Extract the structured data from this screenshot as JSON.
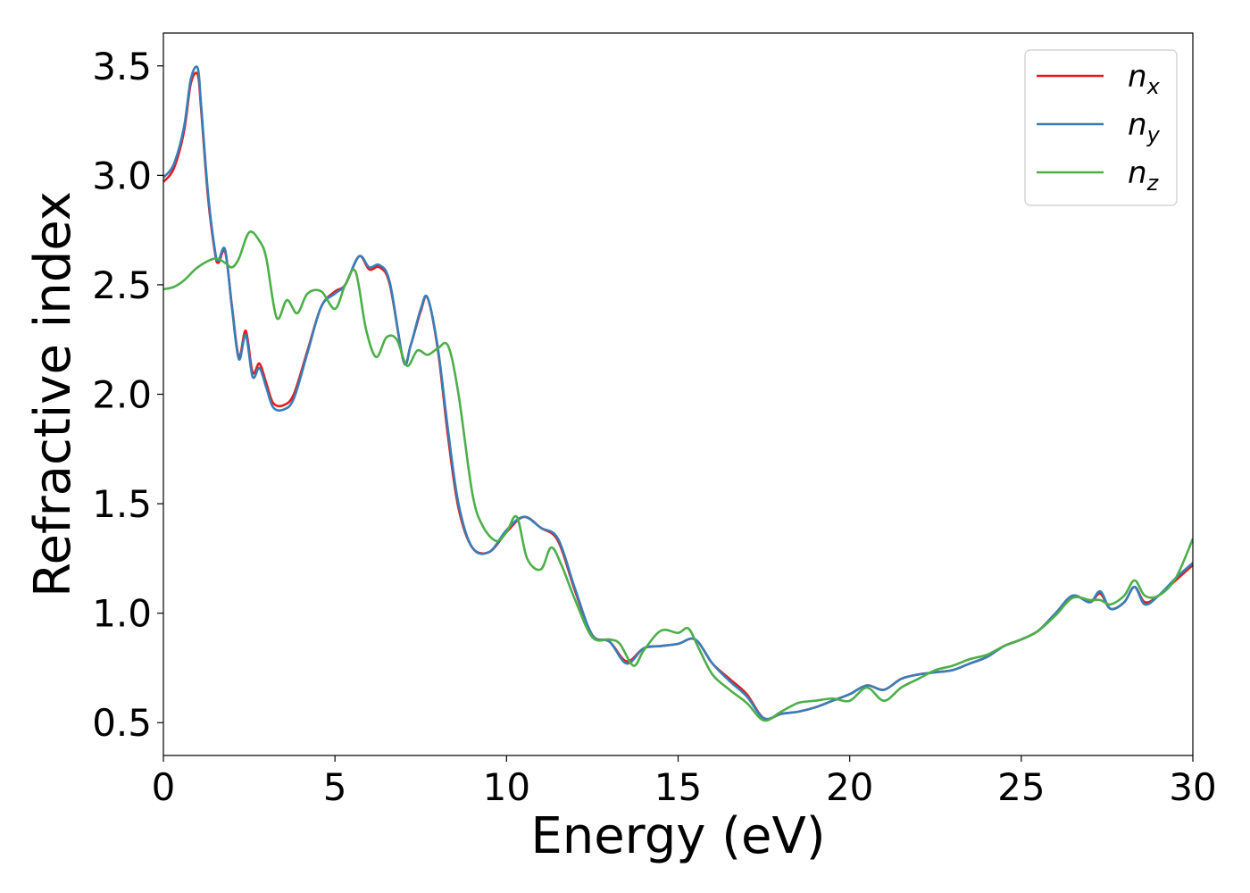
{
  "chart_data": {
    "type": "line",
    "title": "",
    "xlabel": "Energy (eV)",
    "ylabel": "Refractive index",
    "xlim": [
      0,
      30
    ],
    "ylim": [
      0.35,
      3.65
    ],
    "xticks": [
      0,
      5,
      10,
      15,
      20,
      25,
      30
    ],
    "yticks": [
      0.5,
      1.0,
      1.5,
      2.0,
      2.5,
      3.0,
      3.5
    ],
    "xtick_labels": [
      "0",
      "5",
      "10",
      "15",
      "20",
      "25",
      "30"
    ],
    "ytick_labels": [
      "0.5",
      "1.0",
      "1.5",
      "2.0",
      "2.5",
      "3.0",
      "3.5"
    ],
    "grid": false,
    "legend_position": "top-right",
    "series": [
      {
        "name": "n_x",
        "label_base": "n",
        "label_sub": "x",
        "color": "#e41a1c",
        "x": [
          0,
          0.3,
          0.6,
          0.8,
          1.0,
          1.1,
          1.3,
          1.5,
          1.6,
          1.8,
          2.0,
          2.2,
          2.4,
          2.6,
          2.8,
          3.0,
          3.2,
          3.5,
          3.8,
          4.2,
          4.6,
          5.0,
          5.3,
          5.7,
          6.0,
          6.3,
          6.6,
          7.0,
          7.2,
          7.5,
          7.7,
          8.0,
          8.3,
          8.6,
          9.0,
          9.5,
          10.0,
          10.5,
          11.0,
          11.5,
          12.0,
          12.5,
          13.0,
          13.5,
          14.0,
          14.5,
          15.0,
          15.5,
          16.0,
          16.5,
          17.0,
          17.5,
          18.0,
          18.5,
          19.0,
          19.5,
          20.0,
          20.5,
          21.0,
          21.5,
          22.0,
          22.5,
          23.0,
          23.5,
          24.0,
          24.5,
          25.0,
          25.5,
          26.0,
          26.5,
          27.0,
          27.3,
          27.6,
          28.0,
          28.3,
          28.6,
          29.0,
          29.5,
          30.0
        ],
        "y": [
          2.97,
          3.03,
          3.2,
          3.42,
          3.46,
          3.3,
          2.9,
          2.65,
          2.6,
          2.65,
          2.4,
          2.17,
          2.29,
          2.1,
          2.14,
          2.05,
          1.96,
          1.95,
          2.0,
          2.2,
          2.4,
          2.47,
          2.5,
          2.63,
          2.57,
          2.58,
          2.5,
          2.15,
          2.22,
          2.38,
          2.44,
          2.2,
          1.8,
          1.48,
          1.3,
          1.28,
          1.37,
          1.44,
          1.39,
          1.33,
          1.1,
          0.9,
          0.87,
          0.78,
          0.84,
          0.85,
          0.86,
          0.88,
          0.77,
          0.7,
          0.63,
          0.52,
          0.54,
          0.55,
          0.57,
          0.6,
          0.63,
          0.67,
          0.65,
          0.7,
          0.72,
          0.73,
          0.74,
          0.77,
          0.8,
          0.85,
          0.88,
          0.92,
          1.0,
          1.08,
          1.05,
          1.09,
          1.02,
          1.05,
          1.12,
          1.05,
          1.08,
          1.15,
          1.22
        ]
      },
      {
        "name": "n_y",
        "label_base": "n",
        "label_sub": "y",
        "color": "#377eb8",
        "x": [
          0,
          0.3,
          0.6,
          0.8,
          1.0,
          1.1,
          1.3,
          1.5,
          1.6,
          1.8,
          2.0,
          2.2,
          2.4,
          2.6,
          2.8,
          3.0,
          3.2,
          3.5,
          3.8,
          4.2,
          4.6,
          5.0,
          5.3,
          5.7,
          6.0,
          6.3,
          6.6,
          7.0,
          7.2,
          7.5,
          7.7,
          8.0,
          8.3,
          8.6,
          9.0,
          9.5,
          10.0,
          10.5,
          11.0,
          11.5,
          12.0,
          12.5,
          13.0,
          13.5,
          14.0,
          14.5,
          15.0,
          15.5,
          16.0,
          16.5,
          17.0,
          17.5,
          18.0,
          18.5,
          19.0,
          19.5,
          20.0,
          20.5,
          21.0,
          21.5,
          22.0,
          22.5,
          23.0,
          23.5,
          24.0,
          24.5,
          25.0,
          25.5,
          26.0,
          26.5,
          27.0,
          27.3,
          27.6,
          28.0,
          28.3,
          28.6,
          29.0,
          29.5,
          30.0
        ],
        "y": [
          2.99,
          3.05,
          3.22,
          3.44,
          3.49,
          3.32,
          2.92,
          2.66,
          2.61,
          2.66,
          2.39,
          2.16,
          2.27,
          2.08,
          2.12,
          2.03,
          1.94,
          1.93,
          1.98,
          2.19,
          2.4,
          2.46,
          2.5,
          2.63,
          2.58,
          2.59,
          2.51,
          2.15,
          2.22,
          2.39,
          2.44,
          2.21,
          1.83,
          1.5,
          1.3,
          1.28,
          1.38,
          1.44,
          1.39,
          1.34,
          1.11,
          0.9,
          0.87,
          0.77,
          0.84,
          0.85,
          0.86,
          0.88,
          0.77,
          0.69,
          0.62,
          0.52,
          0.54,
          0.55,
          0.57,
          0.6,
          0.63,
          0.67,
          0.65,
          0.7,
          0.72,
          0.73,
          0.74,
          0.77,
          0.8,
          0.85,
          0.88,
          0.92,
          1.0,
          1.08,
          1.05,
          1.1,
          1.02,
          1.05,
          1.12,
          1.04,
          1.08,
          1.16,
          1.23
        ]
      },
      {
        "name": "n_z",
        "label_base": "n",
        "label_sub": "z",
        "color": "#4daf4a",
        "x": [
          0,
          0.3,
          0.6,
          1.0,
          1.5,
          1.8,
          2.0,
          2.2,
          2.5,
          2.8,
          3.0,
          3.3,
          3.6,
          3.9,
          4.2,
          4.6,
          5.0,
          5.3,
          5.6,
          5.9,
          6.2,
          6.5,
          6.8,
          7.1,
          7.4,
          7.7,
          8.0,
          8.3,
          8.6,
          9.0,
          9.3,
          9.7,
          10.0,
          10.3,
          10.6,
          11.0,
          11.3,
          11.6,
          12.0,
          12.5,
          13.0,
          13.3,
          13.7,
          14.0,
          14.5,
          15.0,
          15.3,
          15.6,
          16.0,
          16.5,
          17.0,
          17.5,
          18.0,
          18.5,
          19.0,
          19.5,
          20.0,
          20.5,
          21.0,
          21.5,
          22.0,
          22.5,
          23.0,
          23.5,
          24.0,
          24.5,
          25.0,
          25.5,
          26.0,
          26.5,
          27.0,
          27.3,
          27.6,
          28.0,
          28.3,
          28.6,
          29.0,
          29.5,
          30.0
        ],
        "y": [
          2.48,
          2.49,
          2.52,
          2.58,
          2.62,
          2.6,
          2.58,
          2.62,
          2.74,
          2.7,
          2.62,
          2.35,
          2.43,
          2.37,
          2.46,
          2.47,
          2.39,
          2.5,
          2.56,
          2.3,
          2.17,
          2.26,
          2.25,
          2.13,
          2.2,
          2.18,
          2.21,
          2.22,
          2.0,
          1.55,
          1.4,
          1.33,
          1.37,
          1.44,
          1.25,
          1.2,
          1.3,
          1.22,
          1.06,
          0.89,
          0.88,
          0.86,
          0.76,
          0.83,
          0.92,
          0.91,
          0.93,
          0.84,
          0.72,
          0.65,
          0.59,
          0.51,
          0.55,
          0.59,
          0.6,
          0.61,
          0.6,
          0.66,
          0.6,
          0.66,
          0.7,
          0.74,
          0.76,
          0.79,
          0.81,
          0.85,
          0.88,
          0.92,
          0.99,
          1.07,
          1.06,
          1.06,
          1.04,
          1.08,
          1.15,
          1.08,
          1.08,
          1.16,
          1.34
        ]
      }
    ]
  }
}
